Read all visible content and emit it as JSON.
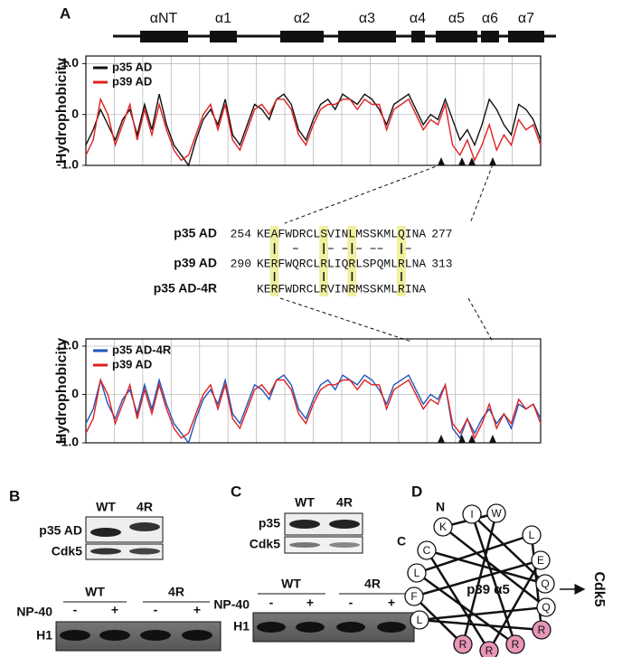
{
  "panel_labels": [
    "A",
    "B",
    "C",
    "D"
  ],
  "structure": {
    "labels": [
      "αNT",
      "α1",
      "α2",
      "α3",
      "α4",
      "α5",
      "α6",
      "α7"
    ]
  },
  "chart_data": [
    {
      "type": "line",
      "ylabel": "Hydrophobicity",
      "ylim": [
        -1,
        1.15
      ],
      "yticks": [
        {
          "value": 1,
          "label": "1.0"
        },
        0,
        {
          "value": -1,
          "label": "-1.0"
        }
      ],
      "grid": true,
      "legend": "upper left",
      "series": [
        {
          "name": "p35 AD",
          "color": "#111111",
          "values": [
            -0.6,
            -0.3,
            0.1,
            -0.2,
            -0.5,
            -0.1,
            0.1,
            -0.4,
            0.2,
            -0.3,
            0.4,
            -0.2,
            -0.6,
            -0.8,
            -1.0,
            -0.5,
            -0.1,
            0.1,
            -0.2,
            0.3,
            -0.4,
            -0.6,
            -0.2,
            0.2,
            0.1,
            -0.1,
            0.3,
            0.4,
            0.2,
            -0.3,
            -0.5,
            -0.1,
            0.2,
            0.3,
            0.1,
            0.4,
            0.3,
            0.2,
            0.4,
            0.3,
            0.1,
            -0.2,
            0.2,
            0.3,
            0.4,
            0.1,
            -0.2,
            0.0,
            -0.1,
            0.3,
            -0.1,
            -0.5,
            -0.3,
            -0.6,
            -0.2,
            0.3,
            0.1,
            -0.2,
            -0.4,
            0.2,
            0.1,
            -0.1,
            -0.5
          ]
        },
        {
          "name": "p39 AD",
          "color": "#e02020",
          "values": [
            -0.8,
            -0.5,
            0.3,
            0.0,
            -0.6,
            -0.2,
            0.2,
            -0.5,
            0.1,
            -0.4,
            0.2,
            -0.3,
            -0.7,
            -0.9,
            -0.8,
            -0.4,
            0.0,
            0.2,
            -0.3,
            0.2,
            -0.5,
            -0.7,
            -0.3,
            0.1,
            0.2,
            0.0,
            0.3,
            0.3,
            0.1,
            -0.4,
            -0.6,
            -0.2,
            0.1,
            0.2,
            0.2,
            0.3,
            0.3,
            0.1,
            0.3,
            0.2,
            0.2,
            -0.3,
            0.1,
            0.2,
            0.3,
            0.0,
            -0.3,
            -0.1,
            -0.2,
            0.2,
            -0.6,
            -0.8,
            -0.5,
            -0.9,
            -0.6,
            -0.2,
            -0.7,
            -0.4,
            -0.6,
            -0.1,
            -0.3,
            -0.2,
            -0.6
          ]
        }
      ]
    },
    {
      "type": "line",
      "ylabel": "Hydrophobicity",
      "ylim": [
        -1,
        1.15
      ],
      "yticks": [
        {
          "value": 1,
          "label": "1.0"
        },
        0,
        {
          "value": -1,
          "label": "-1.0"
        }
      ],
      "grid": true,
      "legend": "upper left",
      "series": [
        {
          "name": "p35 AD-4R",
          "color": "#2255bb",
          "values": [
            -0.6,
            -0.3,
            0.3,
            -0.2,
            -0.5,
            -0.1,
            0.1,
            -0.4,
            0.2,
            -0.3,
            0.3,
            -0.2,
            -0.6,
            -0.8,
            -1.0,
            -0.5,
            -0.1,
            0.1,
            -0.2,
            0.3,
            -0.4,
            -0.6,
            -0.2,
            0.2,
            0.1,
            -0.1,
            0.3,
            0.4,
            0.2,
            -0.3,
            -0.5,
            -0.1,
            0.2,
            0.3,
            0.1,
            0.4,
            0.3,
            0.2,
            0.4,
            0.3,
            0.1,
            -0.2,
            0.2,
            0.3,
            0.4,
            0.1,
            -0.2,
            0.0,
            -0.1,
            0.2,
            -0.7,
            -0.9,
            -0.5,
            -0.8,
            -0.5,
            -0.3,
            -0.6,
            -0.4,
            -0.7,
            -0.2,
            -0.3,
            -0.2,
            -0.5
          ]
        },
        {
          "name": "p39 AD",
          "color": "#e02020",
          "values": [
            -0.8,
            -0.5,
            0.3,
            0.0,
            -0.6,
            -0.2,
            0.2,
            -0.5,
            0.1,
            -0.4,
            0.2,
            -0.3,
            -0.7,
            -0.9,
            -0.8,
            -0.4,
            0.0,
            0.2,
            -0.3,
            0.2,
            -0.5,
            -0.7,
            -0.3,
            0.1,
            0.2,
            0.0,
            0.3,
            0.3,
            0.1,
            -0.4,
            -0.6,
            -0.2,
            0.1,
            0.2,
            0.2,
            0.3,
            0.3,
            0.1,
            0.3,
            0.2,
            0.2,
            -0.3,
            0.1,
            0.2,
            0.3,
            0.0,
            -0.3,
            -0.1,
            -0.2,
            0.2,
            -0.6,
            -0.8,
            -0.5,
            -0.9,
            -0.6,
            -0.2,
            -0.7,
            -0.4,
            -0.6,
            -0.1,
            -0.3,
            -0.2,
            -0.6
          ]
        }
      ]
    }
  ],
  "alignment": {
    "rows": [
      {
        "label": "p35 AD",
        "start": "254",
        "sequence": "KEAFWDRCLSVINLMSSKMLQINA",
        "end": "277"
      },
      {
        "label": "p39 AD",
        "start": "290",
        "sequence": "KERFWQRCLRLIQRLSPQMLRLNA",
        "end": "313"
      },
      {
        "label": "p35 AD-4R",
        "sequence": "KERFWDRCLRVINRMSSKMLRINA"
      }
    ]
  },
  "panel_b": {
    "lanes": [
      "WT",
      "4R"
    ],
    "bands": [
      "p35 AD",
      "Cdk5"
    ],
    "groups": [
      "WT",
      "4R"
    ],
    "treatment": "NP-40",
    "signs": [
      "-",
      "+",
      "-",
      "+"
    ],
    "substrate": "H1"
  },
  "panel_c": {
    "lanes": [
      "WT",
      "4R"
    ],
    "bands": [
      "p35",
      "Cdk5"
    ],
    "groups": [
      "WT",
      "4R"
    ],
    "treatment": "NP-40",
    "signs": [
      "-",
      "+",
      "-",
      "+"
    ],
    "substrate": "H1"
  },
  "panel_d": {
    "n_term": "N",
    "c_term": "C",
    "center": "p39 α5",
    "target": "Cdk5",
    "residues": [
      "W",
      "I",
      "K",
      "C",
      "L",
      "F",
      "L",
      "R",
      "R",
      "R",
      "R",
      "Q",
      "Q",
      "E",
      "L"
    ]
  }
}
